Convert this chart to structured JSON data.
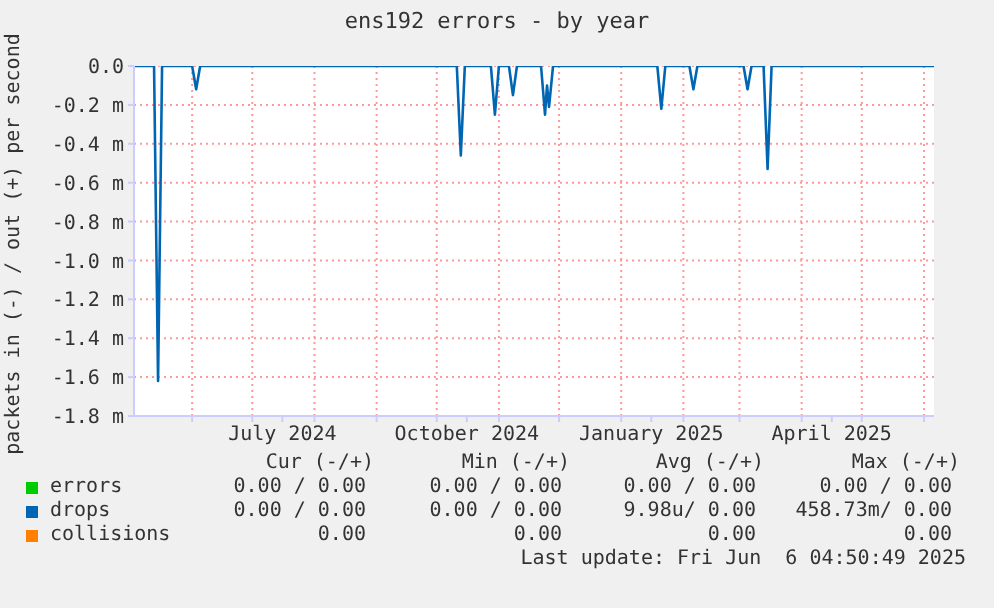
{
  "chart_data": {
    "type": "line",
    "title": "ens192 errors - by year",
    "ylabel": "packets in (-) / out (+) per second",
    "xlim": [
      "2024-05-03",
      "2025-06-06"
    ],
    "ylim": [
      -1.8,
      0
    ],
    "xticks": [
      {
        "value": "2024-06-01",
        "label": null
      },
      {
        "value": "2024-07-01",
        "label": null
      },
      {
        "value": "2024-07-16",
        "label": "July 2024"
      },
      {
        "value": "2024-08-01",
        "label": null
      },
      {
        "value": "2024-09-01",
        "label": null
      },
      {
        "value": "2024-10-01",
        "label": null
      },
      {
        "value": "2024-10-16",
        "label": "October 2024"
      },
      {
        "value": "2024-11-01",
        "label": null
      },
      {
        "value": "2024-12-01",
        "label": null
      },
      {
        "value": "2025-01-01",
        "label": null
      },
      {
        "value": "2025-01-16",
        "label": "January 2025"
      },
      {
        "value": "2025-02-01",
        "label": null
      },
      {
        "value": "2025-03-01",
        "label": null
      },
      {
        "value": "2025-04-01",
        "label": null
      },
      {
        "value": "2025-04-16",
        "label": "April 2025"
      },
      {
        "value": "2025-05-01",
        "label": null
      },
      {
        "value": "2025-06-01",
        "label": null
      }
    ],
    "yticks": [
      {
        "value": 0,
        "label": "0.0"
      },
      {
        "value": -0.2,
        "label": "-0.2 m"
      },
      {
        "value": -0.4,
        "label": "-0.4 m"
      },
      {
        "value": -0.6,
        "label": "-0.6 m"
      },
      {
        "value": -0.8,
        "label": "-0.8 m"
      },
      {
        "value": -1.0,
        "label": "-1.0 m"
      },
      {
        "value": -1.2,
        "label": "-1.2 m"
      },
      {
        "value": -1.4,
        "label": "-1.4 m"
      },
      {
        "value": -1.6,
        "label": "-1.6 m"
      },
      {
        "value": -1.8,
        "label": "-1.8 m"
      }
    ],
    "grid": true,
    "legend": "bottom",
    "marker": "none",
    "line_style": "solid",
    "series": [
      {
        "name": "errors",
        "color": "#00cc00"
      },
      {
        "name": "drops",
        "color": "#0066b3",
        "x": [
          "2024-05-03",
          "2024-05-13",
          "2024-05-15",
          "2024-05-17",
          "2024-06-01",
          "2024-06-03",
          "2024-06-05",
          "2024-10-11",
          "2024-10-13",
          "2024-10-15",
          "2024-10-28",
          "2024-10-30",
          "2024-11-01",
          "2024-11-06",
          "2024-11-08",
          "2024-11-10",
          "2024-11-22",
          "2024-11-24",
          "2024-11-25",
          "2024-11-26",
          "2024-11-28",
          "2025-01-19",
          "2025-01-21",
          "2025-01-23",
          "2025-02-04",
          "2025-02-06",
          "2025-02-08",
          "2025-03-03",
          "2025-03-05",
          "2025-03-07",
          "2025-03-13",
          "2025-03-15",
          "2025-03-17",
          "2025-06-06"
        ],
        "values": [
          0,
          0,
          -1.62,
          0,
          0,
          -0.12,
          0,
          0,
          -0.46,
          0,
          0,
          -0.25,
          0,
          0,
          -0.15,
          0,
          0,
          -0.25,
          -0.1,
          -0.21,
          0,
          0,
          -0.22,
          0,
          0,
          -0.12,
          0,
          0,
          -0.12,
          0,
          0,
          -0.53,
          0,
          0
        ]
      },
      {
        "name": "collisions",
        "color": "#ff8000"
      }
    ],
    "annotations": [
      "Cur (-/+)",
      "Min (-/+)",
      "Avg (-/+)",
      "Max (-/+)",
      "0.00 / 0.00",
      "0.00 / 0.00",
      "0.00 / 0.00",
      "0.00 / 0.00",
      "0.00 / 0.00",
      "0.00 / 0.00",
      "9.98u/ 0.00",
      "458.73m/ 0.00",
      "0.00",
      "0.00",
      "0.00",
      "0.00",
      "Last update: Fri Jun  6 04:50:49 2025"
    ]
  }
}
